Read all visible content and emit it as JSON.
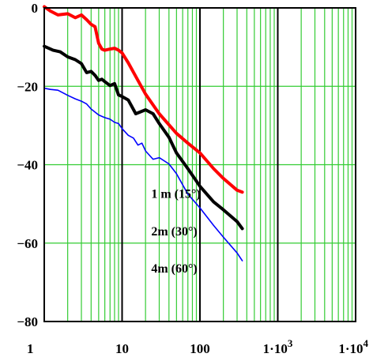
{
  "chart_data": {
    "type": "line",
    "title": "",
    "xlabel": "",
    "ylabel": "",
    "xscale": "log",
    "xlim": [
      1,
      10000
    ],
    "ylim": [
      -80,
      0
    ],
    "grid": true,
    "colors": {
      "grid_major": "#000000",
      "grid_minor": "#33cc33"
    },
    "x_ticks": [
      {
        "value": 1,
        "label": "1"
      },
      {
        "value": 10,
        "label": "10"
      },
      {
        "value": 100,
        "label": "100"
      },
      {
        "value": 1000,
        "label": "1·10",
        "sup": "3"
      },
      {
        "value": 10000,
        "label": "1·10",
        "sup": "4"
      }
    ],
    "y_ticks": [
      {
        "value": 0,
        "label": "0"
      },
      {
        "value": -20,
        "label": "−20"
      },
      {
        "value": -40,
        "label": "−40"
      },
      {
        "value": -60,
        "label": "−60"
      },
      {
        "value": -80,
        "label": "−80"
      }
    ],
    "series": [
      {
        "name": "1 m (15°)",
        "label_at": {
          "x": 450,
          "y": -48.5
        },
        "color": "#ff0000",
        "width": 4,
        "x": [
          1,
          1.2,
          1.5,
          2,
          2.5,
          3,
          3.5,
          4,
          4.5,
          5,
          5.5,
          6,
          7,
          8,
          9,
          10,
          12,
          15,
          20,
          30,
          50,
          70,
          100,
          150,
          200,
          300,
          350
        ],
        "y": [
          0.3,
          -0.8,
          -1.8,
          -1.5,
          -2.5,
          -1.8,
          -3,
          -4.2,
          -4.8,
          -9,
          -10.5,
          -10.8,
          -10.5,
          -10.3,
          -10.8,
          -11.5,
          -14,
          -17.5,
          -22,
          -27,
          -32,
          -34.5,
          -37,
          -41,
          -43.5,
          -46.5,
          -47
        ]
      },
      {
        "name": "2m  (30°)",
        "label_at": {
          "x": 450,
          "y": -58
        },
        "color": "#000000",
        "width": 4,
        "x": [
          1,
          1.3,
          1.6,
          2,
          2.5,
          3,
          3.5,
          4,
          4.5,
          5,
          5.5,
          6,
          7,
          8,
          9,
          10,
          12,
          15,
          20,
          25,
          30,
          40,
          50,
          70,
          100,
          150,
          200,
          300,
          350
        ],
        "y": [
          -9.8,
          -10.8,
          -11.2,
          -12.5,
          -13.2,
          -14.2,
          -16.5,
          -16.2,
          -17.2,
          -18.5,
          -18.2,
          -18.8,
          -19.8,
          -19.3,
          -22.2,
          -22.6,
          -23.5,
          -27,
          -26,
          -27,
          -29.5,
          -33,
          -37,
          -41,
          -45.5,
          -49.5,
          -51.5,
          -54.5,
          -56.3
        ]
      },
      {
        "name": "4m (60°)",
        "label_at": {
          "x": 450,
          "y": -67.5
        },
        "color": "#0000ff",
        "width": 1.6,
        "x": [
          1,
          1.2,
          1.5,
          2,
          2.5,
          3,
          3.5,
          4,
          5,
          6,
          7,
          8,
          9,
          10,
          12,
          14,
          16,
          18,
          20,
          25,
          30,
          40,
          50,
          70,
          100,
          150,
          200,
          300,
          350
        ],
        "y": [
          -20.5,
          -20.8,
          -21,
          -22.3,
          -23.2,
          -23.8,
          -24.5,
          -25.8,
          -27.3,
          -28,
          -28.4,
          -29.2,
          -29.5,
          -30.8,
          -32.5,
          -33.2,
          -35,
          -34.5,
          -36.5,
          -38.6,
          -38.2,
          -39.8,
          -42.3,
          -47.5,
          -51,
          -55.5,
          -58.5,
          -62.5,
          -64.5
        ]
      }
    ]
  }
}
